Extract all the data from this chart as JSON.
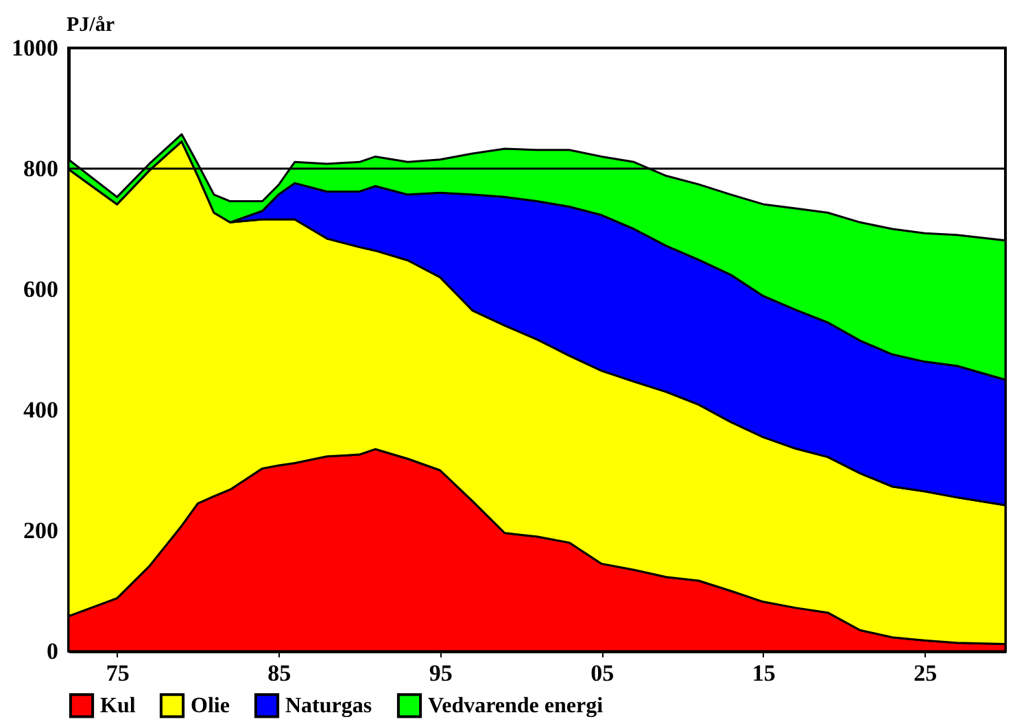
{
  "chart_data": {
    "type": "area",
    "stacked": true,
    "ylabel": "PJ/år",
    "x": [
      1972,
      1975,
      1977,
      1979,
      1980,
      1981,
      1982,
      1984,
      1985,
      1986,
      1988,
      1990,
      1991,
      1993,
      1995,
      1997,
      1999,
      2001,
      2003,
      2005,
      2007,
      2009,
      2011,
      2013,
      2015,
      2017,
      2019,
      2021,
      2023,
      2025,
      2027,
      2030
    ],
    "series": [
      {
        "name": "Kul",
        "color": "#ff0000",
        "values": [
          58,
          88,
          141,
          208,
          245,
          257,
          268,
          303,
          308,
          312,
          323,
          326,
          335,
          319,
          300,
          249,
          196,
          190,
          180,
          145,
          135,
          123,
          117,
          100,
          82,
          72,
          64,
          35,
          23,
          18,
          14,
          12
        ]
      },
      {
        "name": "Olie",
        "color": "#ffff00",
        "values": [
          741,
          653,
          656,
          637,
          543,
          470,
          443,
          413,
          408,
          404,
          361,
          344,
          329,
          329,
          320,
          316,
          344,
          327,
          310,
          320,
          312,
          307,
          292,
          280,
          273,
          264,
          258,
          260,
          250,
          247,
          241,
          230
        ]
      },
      {
        "name": "Naturgas",
        "color": "#0000ff",
        "values": [
          0,
          0,
          0,
          0,
          0,
          0,
          0,
          14,
          41,
          60,
          78,
          92,
          107,
          109,
          140,
          192,
          213,
          229,
          247,
          258,
          253,
          242,
          240,
          244,
          234,
          230,
          223,
          220,
          219,
          215,
          218,
          208
        ]
      },
      {
        "name": "Vedvarende energi",
        "color": "#00ff00",
        "values": [
          16,
          12,
          11,
          12,
          20,
          30,
          35,
          16,
          16,
          35,
          46,
          49,
          49,
          54,
          55,
          68,
          80,
          85,
          94,
          97,
          111,
          116,
          125,
          133,
          152,
          168,
          182,
          196,
          208,
          213,
          217,
          231
        ]
      }
    ],
    "xlim": [
      1972,
      2030
    ],
    "xticks": [
      {
        "value": 1975,
        "label": "75"
      },
      {
        "value": 1985,
        "label": "85"
      },
      {
        "value": 1995,
        "label": "95"
      },
      {
        "value": 2005,
        "label": "05"
      },
      {
        "value": 2015,
        "label": "15"
      },
      {
        "value": 2025,
        "label": "25"
      }
    ],
    "ylim": [
      0,
      1000
    ],
    "yticks": [
      0,
      200,
      400,
      600,
      800,
      1000
    ],
    "ref_lines": [
      {
        "axis": "y",
        "value": 800,
        "label": null,
        "color": "#000000"
      }
    ],
    "grid": false,
    "legend": "bottom"
  }
}
